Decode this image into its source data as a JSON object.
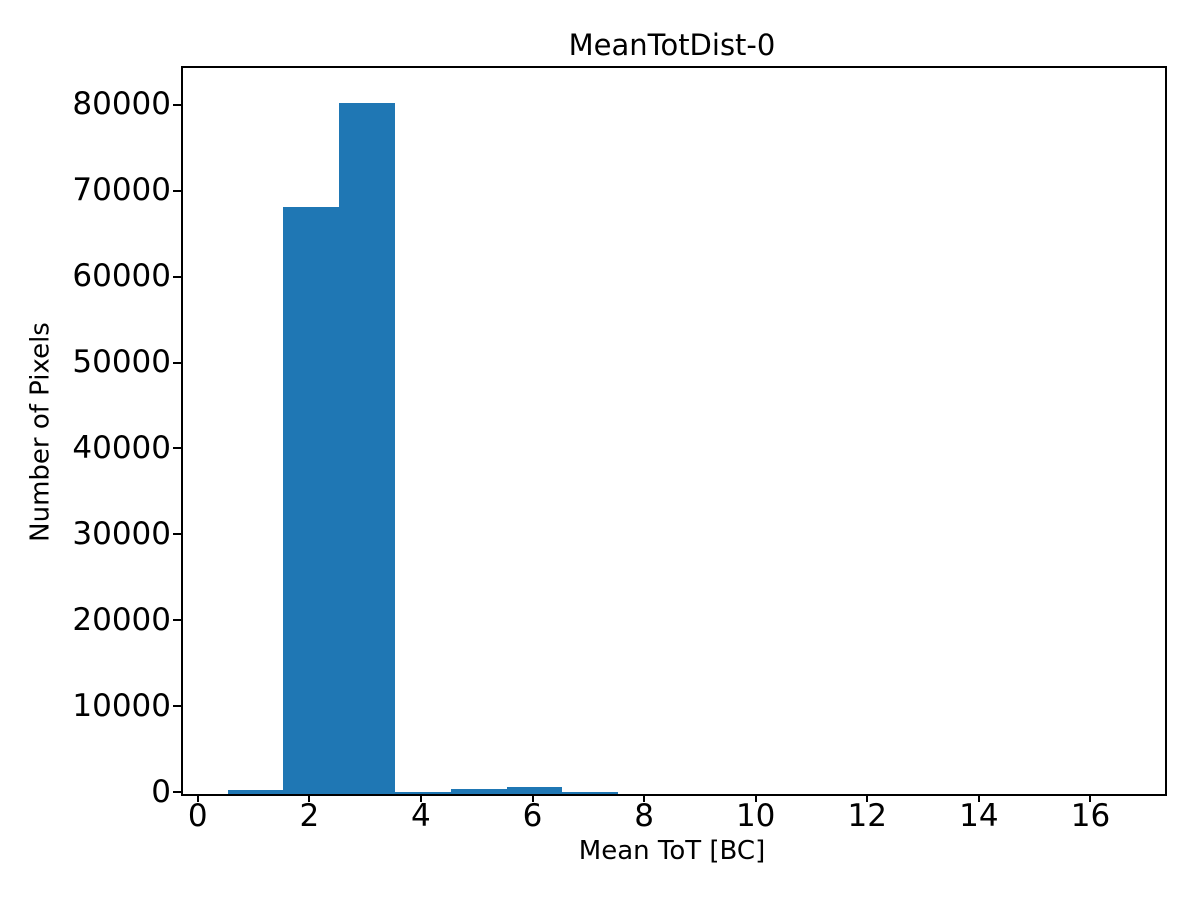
{
  "figure": {
    "title": "MeanTotDist-0",
    "xlabel": "Mean ToT [BC]",
    "ylabel": "Number of Pixels"
  },
  "chart_data": {
    "type": "bar",
    "subtype": "histogram",
    "title": "MeanTotDist-0",
    "xlabel": "Mean ToT [BC]",
    "ylabel": "Number of Pixels",
    "bin_edges": [
      0.5,
      1.5,
      2.5,
      3.5,
      4.5,
      5.5,
      6.5,
      7.5,
      8.5,
      9.5,
      10.5,
      11.5,
      12.5,
      13.5,
      14.5,
      15.5,
      16.5
    ],
    "counts": [
      450,
      68400,
      80500,
      250,
      600,
      800,
      250,
      0,
      0,
      0,
      0,
      0,
      0,
      0,
      0,
      0
    ],
    "bar_color": "#1f77b4",
    "axis_color": "#000000",
    "background_color": "#ffffff",
    "xlim": [
      -0.3,
      17.3
    ],
    "ylim": [
      0,
      84525
    ],
    "xticks": [
      0,
      2,
      4,
      6,
      8,
      10,
      12,
      14,
      16
    ],
    "xtick_labels": [
      "0",
      "2",
      "4",
      "6",
      "8",
      "10",
      "12",
      "14",
      "16"
    ],
    "yticks": [
      0,
      10000,
      20000,
      30000,
      40000,
      50000,
      60000,
      70000,
      80000
    ],
    "ytick_labels": [
      "0",
      "10000",
      "20000",
      "30000",
      "40000",
      "50000",
      "60000",
      "70000",
      "80000"
    ],
    "grid": false,
    "legend": null
  }
}
